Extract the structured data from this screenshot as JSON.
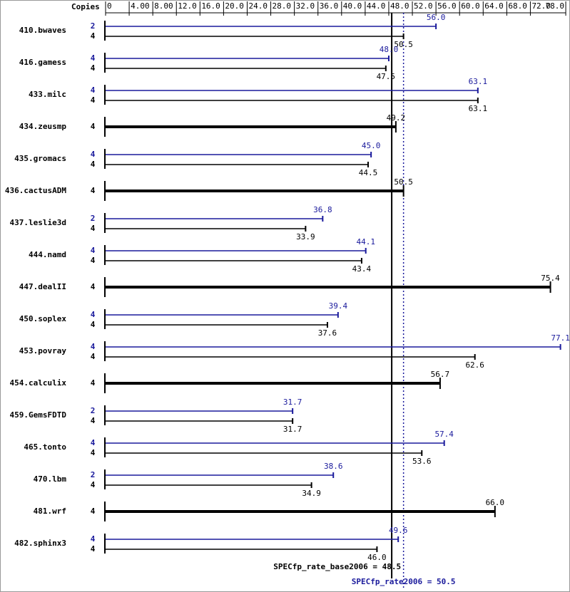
{
  "chart_data": {
    "type": "bar",
    "column_header": "Copies",
    "xlim": [
      0,
      78
    ],
    "xticks": [
      0,
      {
        "value": 4,
        "label": "4.00"
      },
      {
        "value": 8,
        "label": "8.00"
      },
      {
        "value": 12,
        "label": "12.0"
      },
      {
        "value": 16,
        "label": "16.0"
      },
      {
        "value": 20,
        "label": "20.0"
      },
      {
        "value": 24,
        "label": "24.0"
      },
      {
        "value": 28,
        "label": "28.0"
      },
      {
        "value": 32,
        "label": "32.0"
      },
      {
        "value": 36,
        "label": "36.0"
      },
      {
        "value": 40,
        "label": "40.0"
      },
      {
        "value": 44,
        "label": "44.0"
      },
      {
        "value": 48,
        "label": "48.0"
      },
      {
        "value": 52,
        "label": "52.0"
      },
      {
        "value": 56,
        "label": "56.0"
      },
      {
        "value": 60,
        "label": "60.0"
      },
      {
        "value": 64,
        "label": "64.0"
      },
      {
        "value": 68,
        "label": "68.0"
      },
      {
        "value": 72,
        "label": "72.0"
      },
      {
        "value": 78,
        "label": "78.0"
      }
    ],
    "categories": [
      "410.bwaves",
      "416.gamess",
      "433.milc",
      "434.zeusmp",
      "435.gromacs",
      "436.cactusADM",
      "437.leslie3d",
      "444.namd",
      "447.dealII",
      "450.soplex",
      "453.povray",
      "454.calculix",
      "459.GemsFDTD",
      "465.tonto",
      "470.lbm",
      "481.wrf",
      "482.sphinx3"
    ],
    "series": [
      {
        "color": "#1a1a9c",
        "copies": [
          2,
          4,
          4,
          null,
          4,
          null,
          2,
          4,
          null,
          4,
          4,
          null,
          2,
          4,
          2,
          null,
          4
        ],
        "values": [
          56.0,
          48.0,
          63.1,
          null,
          45.0,
          null,
          36.8,
          44.1,
          null,
          39.4,
          77.1,
          null,
          31.7,
          57.4,
          38.6,
          null,
          49.6
        ],
        "value_labels": [
          "56.0",
          "48.0",
          "63.1",
          null,
          "45.0",
          null,
          "36.8",
          "44.1",
          null,
          "39.4",
          "77.1",
          null,
          "31.7",
          "57.4",
          "38.6",
          null,
          "49.6"
        ]
      },
      {
        "color": "#000000",
        "copies": [
          4,
          4,
          4,
          4,
          4,
          4,
          4,
          4,
          4,
          4,
          4,
          4,
          4,
          4,
          4,
          4,
          4
        ],
        "values": [
          50.5,
          47.5,
          63.1,
          49.2,
          44.5,
          50.5,
          33.9,
          43.4,
          75.4,
          37.6,
          62.6,
          56.7,
          31.7,
          53.6,
          34.9,
          66.0,
          46.0
        ],
        "value_labels": [
          "50.5",
          "47.5",
          "63.1",
          "49.2",
          "44.5",
          "50.5",
          "33.9",
          "43.4",
          "75.4",
          "37.6",
          "62.6",
          "56.7",
          "31.7",
          "53.6",
          "34.9",
          "66.0",
          "46.0"
        ]
      }
    ],
    "reference_lines": [
      {
        "label": "SPECfp_rate_base2006 = 48.5",
        "value": 48.5,
        "color": "#000000",
        "style": "solid"
      },
      {
        "label": "SPECfp_rate2006 = 50.5",
        "value": 50.5,
        "color": "#1a1a9c",
        "style": "dotted"
      }
    ]
  }
}
